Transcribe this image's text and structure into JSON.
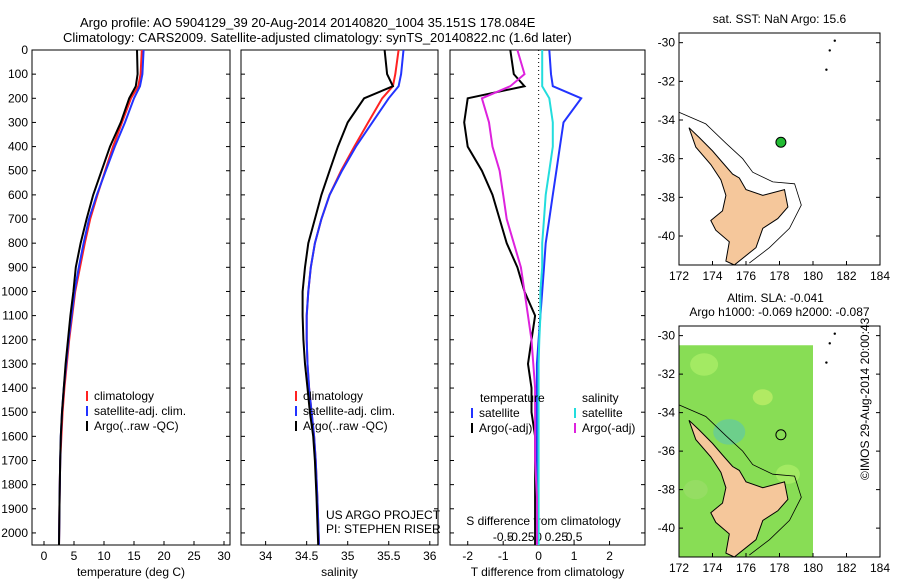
{
  "header": {
    "line1": "Argo profile: AO 5904129_39 20-Aug-2014 20140820_1004 35.151S 178.084E",
    "line2": "Climatology: CARS2009. Satellite-adjusted climatology: synTS_20140822.nc (1.6d later)"
  },
  "colors": {
    "climatology": "#ff2222",
    "satellite": "#2233ff",
    "argo": "#000000",
    "sat_diff": "#22dddd",
    "argo_s_diff": "#dd22dd"
  },
  "chart_data": [
    {
      "id": "temperature",
      "type": "line",
      "xlabel": "temperature (deg C)",
      "ylabel": "",
      "xlim": [
        -2,
        31
      ],
      "ylim": [
        2050,
        0
      ],
      "xticks": [
        0,
        5,
        10,
        15,
        20,
        25,
        30
      ],
      "yticks": [
        0,
        100,
        200,
        300,
        400,
        500,
        600,
        700,
        800,
        900,
        1000,
        1100,
        1200,
        1300,
        1400,
        1500,
        1600,
        1700,
        1800,
        1900,
        2000
      ],
      "legend": [
        "climatology",
        "satellite-adj. clim.",
        "Argo(..raw -QC)"
      ],
      "legend_position": "lower-right",
      "series": [
        {
          "name": "climatology",
          "color": "#ff2222",
          "x": [
            16.3,
            16.1,
            15.7,
            14.5,
            13.0,
            11.5,
            10.2,
            8.9,
            7.7,
            6.8,
            6.0,
            5.2,
            4.7,
            4.2,
            3.8,
            3.4,
            3.1,
            2.9,
            2.7,
            2.6,
            2.5
          ],
          "y": [
            0,
            100,
            150,
            200,
            300,
            400,
            500,
            600,
            700,
            800,
            900,
            1000,
            1100,
            1200,
            1300,
            1400,
            1500,
            1600,
            1700,
            1850,
            2050
          ]
        },
        {
          "name": "satellite-adj. clim.",
          "color": "#2233ff",
          "x": [
            16.6,
            16.4,
            16.0,
            15.0,
            13.5,
            11.8,
            10.3,
            8.8,
            7.5,
            6.6,
            5.8,
            5.1,
            4.6,
            4.1,
            3.7,
            3.3,
            3.0,
            2.8,
            2.7,
            2.6,
            2.5
          ],
          "y": [
            0,
            100,
            150,
            200,
            300,
            400,
            500,
            600,
            700,
            800,
            900,
            1000,
            1100,
            1200,
            1300,
            1400,
            1500,
            1600,
            1700,
            1850,
            2050
          ]
        },
        {
          "name": "Argo(..raw -QC)",
          "color": "#000000",
          "x": [
            15.5,
            15.6,
            15.3,
            14.2,
            12.8,
            11.0,
            9.6,
            8.2,
            7.1,
            6.1,
            5.3,
            4.9,
            4.4,
            4.0,
            3.6,
            3.3,
            3.0,
            2.8,
            2.7,
            2.6,
            2.5
          ],
          "y": [
            0,
            100,
            150,
            200,
            300,
            400,
            500,
            600,
            700,
            800,
            900,
            1000,
            1100,
            1200,
            1300,
            1400,
            1500,
            1600,
            1700,
            1850,
            2050
          ]
        }
      ]
    },
    {
      "id": "salinity",
      "type": "line",
      "xlabel": "salinity",
      "xlim": [
        33.7,
        36.1
      ],
      "ylim": [
        2050,
        0
      ],
      "xticks": [
        34,
        34.5,
        35,
        35.5,
        36
      ],
      "legend": [
        "climatology",
        "satellite-adj. clim.",
        "Argo(..raw -QC)"
      ],
      "legend_position": "lower-right",
      "credit": [
        "US ARGO PROJECT",
        "PI: STEPHEN RISER"
      ],
      "series": [
        {
          "name": "climatology",
          "color": "#ff2222",
          "x": [
            35.62,
            35.58,
            35.55,
            35.42,
            35.25,
            35.08,
            34.92,
            34.78,
            34.68,
            34.6,
            34.55,
            34.52,
            34.5,
            34.5,
            34.51,
            34.53,
            34.56,
            34.59,
            34.61,
            34.63,
            34.65
          ],
          "y": [
            0,
            100,
            150,
            200,
            300,
            400,
            500,
            600,
            700,
            800,
            900,
            1000,
            1100,
            1200,
            1300,
            1400,
            1500,
            1600,
            1700,
            1850,
            2050
          ]
        },
        {
          "name": "satellite-adj. clim.",
          "color": "#2233ff",
          "x": [
            35.68,
            35.65,
            35.62,
            35.5,
            35.3,
            35.1,
            34.93,
            34.78,
            34.68,
            34.6,
            34.55,
            34.52,
            34.5,
            34.5,
            34.51,
            34.53,
            34.56,
            34.59,
            34.61,
            34.63,
            34.65
          ],
          "y": [
            0,
            100,
            150,
            200,
            300,
            400,
            500,
            600,
            700,
            800,
            900,
            1000,
            1100,
            1200,
            1300,
            1400,
            1500,
            1600,
            1700,
            1850,
            2050
          ]
        },
        {
          "name": "Argo(..raw -QC)",
          "color": "#000000",
          "x": [
            35.45,
            35.48,
            35.55,
            35.2,
            35.0,
            34.88,
            34.78,
            34.68,
            34.6,
            34.52,
            34.48,
            34.45,
            34.45,
            34.46,
            34.48,
            34.51,
            34.54,
            34.58,
            34.6,
            34.62,
            34.64
          ],
          "y": [
            0,
            100,
            150,
            200,
            300,
            400,
            500,
            600,
            700,
            800,
            900,
            1000,
            1100,
            1200,
            1300,
            1400,
            1500,
            1600,
            1700,
            1850,
            2050
          ]
        }
      ]
    },
    {
      "id": "differences",
      "type": "line",
      "xlabel": "T difference from climatology",
      "xlabel2": "S difference from climatology",
      "xlim": [
        -2.5,
        3
      ],
      "ylim": [
        2050,
        0
      ],
      "xticks": [
        -2,
        -1,
        0,
        1,
        2
      ],
      "xticks_top": [
        "-0.5",
        "-0.25",
        "0",
        "0.25",
        "0.5"
      ],
      "legend_titles": [
        "temperature",
        "salinity"
      ],
      "legend": [
        "satellite",
        "Argo(-adj)",
        "satellite",
        "Argo(-adj)"
      ],
      "legend_position": "lower",
      "series": [
        {
          "name": "T satellite",
          "color": "#2233ff",
          "x": [
            0.3,
            0.35,
            0.4,
            1.2,
            0.7,
            0.6,
            0.5,
            0.4,
            0.3,
            0.2,
            0.15,
            0.1,
            0.05,
            0.0,
            -0.05,
            -0.05,
            -0.05,
            -0.05,
            -0.05,
            -0.05,
            -0.05
          ],
          "y": [
            0,
            100,
            150,
            200,
            300,
            400,
            500,
            600,
            700,
            800,
            900,
            1000,
            1100,
            1200,
            1300,
            1400,
            1500,
            1600,
            1700,
            1850,
            2050
          ]
        },
        {
          "name": "T Argo(-adj)",
          "color": "#000000",
          "x": [
            -0.8,
            -0.7,
            -0.4,
            -2.0,
            -2.1,
            -2.0,
            -1.6,
            -1.3,
            -1.1,
            -0.9,
            -0.6,
            -0.4,
            -0.1,
            -0.2,
            -0.3,
            -0.2,
            -0.2,
            -0.1,
            -0.1,
            -0.1,
            -0.1
          ],
          "y": [
            0,
            100,
            150,
            200,
            300,
            400,
            500,
            600,
            700,
            800,
            900,
            1000,
            1100,
            1200,
            1300,
            1400,
            1500,
            1600,
            1700,
            1850,
            2050
          ]
        },
        {
          "name": "S satellite",
          "color": "#22dddd",
          "x": [
            0.1,
            0.1,
            0.1,
            0.3,
            0.4,
            0.4,
            0.3,
            0.2,
            0.15,
            0.1,
            0.1,
            0.05,
            0.05,
            0.02,
            0.0,
            0.0,
            0.0,
            0.0,
            0.0,
            0.0,
            0.0
          ],
          "y": [
            0,
            100,
            150,
            200,
            300,
            400,
            500,
            600,
            700,
            800,
            900,
            1000,
            1100,
            1200,
            1300,
            1400,
            1500,
            1600,
            1700,
            1850,
            2050
          ]
        },
        {
          "name": "S Argo(-adj)",
          "color": "#dd22dd",
          "x": [
            -0.6,
            -0.4,
            -0.8,
            -1.6,
            -1.4,
            -1.3,
            -1.1,
            -1.0,
            -0.9,
            -0.7,
            -0.5,
            -0.4,
            -0.3,
            -0.2,
            -0.15,
            -0.1,
            -0.1,
            -0.1,
            -0.1,
            -0.05,
            -0.05
          ],
          "y": [
            0,
            100,
            150,
            200,
            300,
            400,
            500,
            600,
            700,
            800,
            900,
            1000,
            1100,
            1200,
            1300,
            1400,
            1500,
            1600,
            1700,
            1850,
            2050
          ]
        }
      ]
    }
  ],
  "maps": {
    "sst": {
      "title": "sat. SST: NaN Argo: 15.6",
      "xticks": [
        "172",
        "174",
        "176",
        "178",
        "180",
        "182",
        "184"
      ],
      "yticks": [
        "-30",
        "-32",
        "-34",
        "-36",
        "-38",
        "-40"
      ],
      "marker_color": "#22bb33"
    },
    "sla": {
      "title1": "Altim. SLA: -0.041",
      "title2": "Argo h1000: -0.069 h2000: -0.087",
      "xticks": [
        "172",
        "174",
        "176",
        "178",
        "180",
        "182",
        "184"
      ],
      "yticks": [
        "-30",
        "-32",
        "-34",
        "-36",
        "-38",
        "-40"
      ]
    },
    "land_color": "#f5c79b",
    "sea_green": "#88dd55"
  },
  "watermark": "©IMOS 29-Aug-2014 20:00:43"
}
